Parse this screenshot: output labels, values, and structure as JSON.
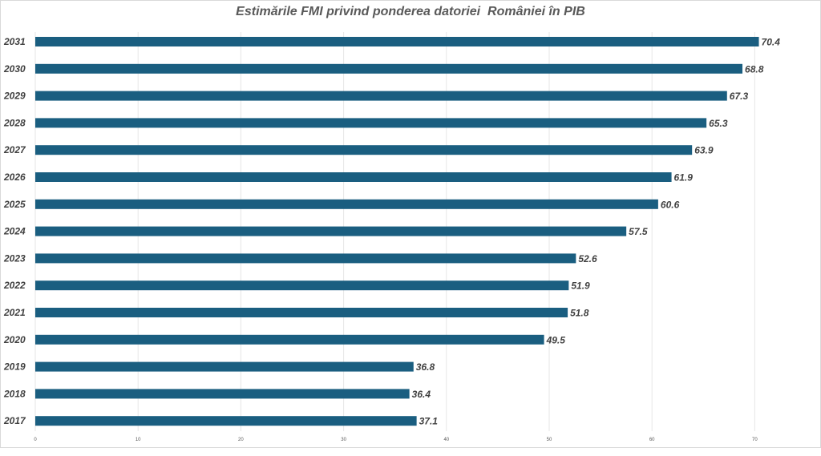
{
  "chart_data": {
    "type": "bar",
    "orientation": "horizontal",
    "title": "Estimările FMI privind ponderea datoriei  României în PIB",
    "xlabel": "",
    "ylabel": "",
    "categories": [
      "2031",
      "2030",
      "2029",
      "2028",
      "2027",
      "2026",
      "2025",
      "2024",
      "2023",
      "2022",
      "2021",
      "2020",
      "2019",
      "2018",
      "2017"
    ],
    "values": [
      70.4,
      68.8,
      67.3,
      65.3,
      63.9,
      61.9,
      60.6,
      57.5,
      52.6,
      51.9,
      51.8,
      49.5,
      36.8,
      36.4,
      37.1
    ],
    "value_labels": [
      "70.4",
      "68.8",
      "67.3",
      "65.3",
      "63.9",
      "61.9",
      "60.6",
      "57.5",
      "52.6",
      "51.9",
      "51.8",
      "49.5",
      "36.8",
      "36.4",
      "37.1"
    ],
    "xticks": [
      "0",
      "10",
      "20",
      "30",
      "40",
      "50",
      "60",
      "70"
    ],
    "xlim": [
      0,
      76
    ],
    "grid": true,
    "legend": "none",
    "bar_color": "#1a5e80"
  }
}
